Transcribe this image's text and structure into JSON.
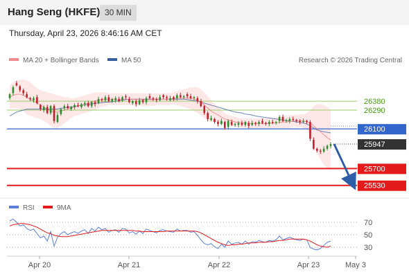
{
  "header": {
    "title": "Hang Seng (HKFE)",
    "interval": "30 MIN",
    "datetime": "Thursday, April 23, 2026 8:46:16 AM CET"
  },
  "legend": {
    "ma20_label": "MA 20 + Bollinger Bands",
    "ma50_label": "MA 50",
    "credit": "Research © 2026 Trading Central",
    "rsi_label": "RSI",
    "rsi_ma_label": "9MA"
  },
  "colors": {
    "ma20": "#f28b8b",
    "ma50": "#3a5fa0",
    "band_fill": "#fde3e3",
    "up_candle": "#2e8b2e",
    "down_candle": "#c0202a",
    "resistance": "#9acd6a",
    "pivot": "#3366cc",
    "support": "#e31b1b",
    "rsi": "#5b7fd6",
    "rsi_ma": "#e31b1b",
    "last_price_bg": "#333333",
    "arrow": "#2f5ea8"
  },
  "chart_data": {
    "type": "candlestick",
    "price_ylim": [
      25430,
      26730
    ],
    "x_ticks": [
      "Apr 20",
      "Apr 21",
      "Apr 22",
      "Apr 23",
      "May 3"
    ],
    "levels": {
      "resistance": [
        26380,
        26290
      ],
      "pivot": 26100,
      "last_price": 25947,
      "support": [
        25700,
        25530
      ]
    },
    "level_labels": {
      "r1": "26380",
      "r2": "26290",
      "pivot": "26100",
      "last": "25947",
      "s1": "25700",
      "s2": "25530"
    },
    "close": [
      26450,
      26520,
      26540,
      26490,
      26460,
      26420,
      26400,
      26410,
      26360,
      26300,
      26320,
      26260,
      26330,
      26180,
      26240,
      26300,
      26330,
      26310,
      26320,
      26340,
      26330,
      26350,
      26360,
      26330,
      26370,
      26350,
      26400,
      26390,
      26420,
      26380,
      26400,
      26410,
      26380,
      26420,
      26420,
      26370,
      26380,
      26350,
      26390,
      26370,
      26410,
      26410,
      26400,
      26390,
      26420,
      26420,
      26410,
      26410,
      26400,
      26440,
      26420,
      26430,
      26430,
      26410,
      26420,
      26380,
      26330,
      26260,
      26200,
      26210,
      26170,
      26150,
      26180,
      26110,
      26180,
      26140,
      26150,
      26160,
      26140,
      26170,
      26130,
      26160,
      26150,
      26170,
      26160,
      26150,
      26170,
      26160,
      26170,
      26220,
      26180,
      26190,
      26200,
      26190,
      26180,
      26170,
      26180,
      26170,
      26000,
      25900,
      25880,
      25870,
      25900,
      25930,
      25947
    ],
    "open_offset": [
      -40,
      -60,
      20,
      40,
      30,
      30,
      10,
      -20,
      60,
      40,
      -30,
      60,
      -70,
      150,
      -70,
      -50,
      -20,
      20,
      -20,
      -20,
      10,
      -30,
      -10,
      30,
      -40,
      20,
      -40,
      10,
      -30,
      40,
      -20,
      -20,
      20,
      -30,
      10,
      30,
      -20,
      30,
      -40,
      20,
      -40,
      20,
      10,
      10,
      -30,
      20,
      10,
      -20,
      20,
      -30,
      20,
      -10,
      20,
      20,
      -10,
      30,
      50,
      70,
      60,
      -20,
      30,
      20,
      -30,
      60,
      -60,
      30,
      -10,
      -20,
      20,
      -30,
      30,
      -20,
      10,
      -20,
      20,
      10,
      -20,
      10,
      -10,
      -40,
      40,
      -10,
      -20,
      10,
      10,
      10,
      -10,
      10,
      170,
      90,
      20,
      10,
      -30,
      -30,
      -20
    ],
    "ma20": [
      26420,
      26440,
      26450,
      26450,
      26440,
      26420,
      26400,
      26380,
      26360,
      26340,
      26320,
      26300,
      26280,
      26270,
      26270,
      26280,
      26290,
      26300,
      26310,
      26320,
      26330,
      26340,
      26350,
      26360,
      26370,
      26380,
      26390,
      26400,
      26400,
      26400,
      26400,
      26400,
      26400,
      26400,
      26400,
      26400,
      26400,
      26400,
      26400,
      26395,
      26395,
      26395,
      26395,
      26400,
      26400,
      26400,
      26400,
      26400,
      26410,
      26410,
      26410,
      26410,
      26410,
      26410,
      26400,
      26390,
      26370,
      26340,
      26310,
      26280,
      26260,
      26240,
      26220,
      26200,
      26190,
      26180,
      26170,
      26165,
      26160,
      26160,
      26155,
      26155,
      26155,
      26155,
      26155,
      26155,
      26155,
      26160,
      26160,
      26165,
      26170,
      26170,
      26175,
      26180,
      26180,
      26180,
      26180,
      26175,
      26160,
      26130,
      26100,
      26070,
      26040,
      26010,
      25990
    ],
    "bb_upper": [
      26540,
      26570,
      26590,
      26600,
      26600,
      26590,
      26570,
      26540,
      26510,
      26490,
      26480,
      26470,
      26460,
      26450,
      26440,
      26430,
      26420,
      26420,
      26410,
      26410,
      26420,
      26430,
      26440,
      26450,
      26460,
      26470,
      26470,
      26470,
      26470,
      26460,
      26460,
      26460,
      26460,
      26460,
      26460,
      26460,
      26460,
      26460,
      26460,
      26460,
      26460,
      26460,
      26460,
      26460,
      26460,
      26460,
      26460,
      26460,
      26470,
      26480,
      26490,
      26500,
      26510,
      26520,
      26520,
      26520,
      26500,
      26470,
      26430,
      26390,
      26350,
      26320,
      26290,
      26260,
      26240,
      26230,
      26220,
      26210,
      26210,
      26210,
      26205,
      26205,
      26205,
      26205,
      26205,
      26205,
      26210,
      26210,
      26215,
      26225,
      26230,
      26235,
      26240,
      26240,
      26245,
      26245,
      26250,
      26260,
      26290,
      26330,
      26350,
      26350,
      26340,
      26320,
      26300
    ],
    "bb_lower": [
      26300,
      26310,
      26310,
      26300,
      26280,
      26250,
      26230,
      26220,
      26210,
      26200,
      26180,
      26160,
      26130,
      26110,
      26110,
      26130,
      26160,
      26180,
      26210,
      26230,
      26240,
      26250,
      26260,
      26270,
      26280,
      26290,
      26310,
      26330,
      26330,
      26340,
      26340,
      26340,
      26340,
      26340,
      26340,
      26340,
      26340,
      26340,
      26340,
      26330,
      26330,
      26330,
      26330,
      26340,
      26340,
      26340,
      26340,
      26340,
      26350,
      26340,
      26330,
      26320,
      26310,
      26300,
      26280,
      26260,
      26240,
      26210,
      26190,
      26170,
      26170,
      26160,
      26150,
      26140,
      26140,
      26130,
      26120,
      26120,
      26110,
      26110,
      26105,
      26105,
      26105,
      26105,
      26105,
      26105,
      26100,
      26110,
      26105,
      26105,
      26110,
      26105,
      26110,
      26120,
      26115,
      26115,
      26110,
      26090,
      26030,
      25930,
      25850,
      25790,
      25740,
      25700,
      25680
    ],
    "ma50": [
      26230,
      26250,
      26270,
      26280,
      26290,
      26300,
      26300,
      26300,
      26300,
      26300,
      26300,
      26300,
      26300,
      26300,
      26300,
      26310,
      26310,
      26320,
      26320,
      26330,
      26330,
      26340,
      26340,
      26350,
      26350,
      26360,
      26360,
      26365,
      26370,
      26370,
      26375,
      26380,
      26385,
      26390,
      26395,
      26400,
      26400,
      26400,
      26400,
      26400,
      26400,
      26400,
      26400,
      26400,
      26400,
      26400,
      26400,
      26400,
      26400,
      26400,
      26400,
      26400,
      26395,
      26390,
      26385,
      26380,
      26370,
      26360,
      26350,
      26340,
      26330,
      26320,
      26310,
      26300,
      26290,
      26280,
      26270,
      26265,
      26260,
      26250,
      26245,
      26240,
      26230,
      26225,
      26220,
      26215,
      26210,
      26205,
      26200,
      26195,
      26190,
      26185,
      26180,
      26175,
      26170,
      26165,
      26160,
      26150,
      26130,
      26110,
      26090,
      26080,
      26070,
      26065,
      26060
    ],
    "forecast_arrow": {
      "from": 25947,
      "to": 25530
    },
    "rsi_ylim": [
      18,
      82
    ],
    "rsi_ticks": [
      "70",
      "50",
      "30"
    ],
    "rsi_levels": [
      70,
      50,
      30
    ],
    "rsi": [
      72,
      75,
      70,
      64,
      66,
      60,
      57,
      59,
      52,
      45,
      48,
      40,
      55,
      32,
      46,
      52,
      55,
      50,
      53,
      55,
      52,
      56,
      58,
      52,
      60,
      56,
      62,
      58,
      60,
      54,
      57,
      58,
      54,
      60,
      59,
      53,
      55,
      51,
      56,
      52,
      59,
      57,
      55,
      53,
      57,
      58,
      56,
      55,
      54,
      59,
      56,
      57,
      57,
      54,
      55,
      49,
      42,
      36,
      34,
      36,
      31,
      28,
      35,
      30,
      40,
      35,
      37,
      38,
      35,
      40,
      35,
      39,
      38,
      41,
      39,
      38,
      41,
      40,
      42,
      48,
      42,
      44,
      46,
      44,
      42,
      41,
      43,
      42,
      30,
      27,
      26,
      28,
      33,
      38,
      40
    ],
    "rsi_ma": [
      64,
      66,
      67,
      68,
      68,
      67,
      66,
      64,
      62,
      59,
      56,
      53,
      52,
      49,
      48,
      47,
      47,
      47,
      48,
      49,
      50,
      51,
      52,
      53,
      54,
      55,
      56,
      57,
      57,
      57,
      57,
      57,
      57,
      57,
      57,
      57,
      57,
      56,
      56,
      55,
      55,
      55,
      55,
      55,
      55,
      55,
      56,
      56,
      56,
      56,
      56,
      56,
      56,
      56,
      56,
      55,
      53,
      50,
      47,
      44,
      41,
      38,
      36,
      34,
      33,
      34,
      34,
      35,
      35,
      36,
      37,
      37,
      37,
      38,
      38,
      38,
      39,
      39,
      40,
      41,
      41,
      42,
      43,
      43,
      43,
      43,
      43,
      42,
      40,
      37,
      34,
      32,
      31,
      30,
      32
    ]
  }
}
